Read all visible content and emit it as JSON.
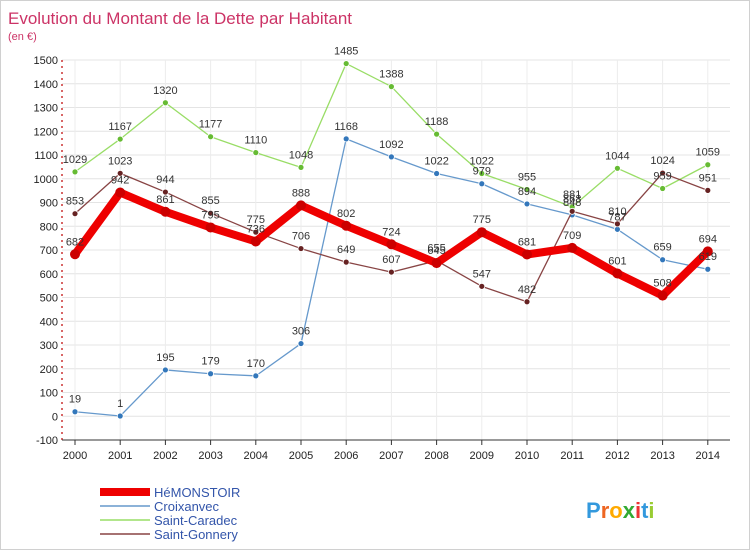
{
  "chart_data": {
    "type": "line",
    "title": "Evolution du Montant de la Dette par Habitant",
    "subtitle": "(en €)",
    "xlabel": "",
    "ylabel": "",
    "ylim": [
      -100,
      1500
    ],
    "y_ticks": [
      -100,
      0,
      100,
      200,
      300,
      400,
      500,
      600,
      700,
      800,
      900,
      1000,
      1100,
      1200,
      1300,
      1400,
      1500
    ],
    "x": [
      "2000",
      "2001",
      "2002",
      "2003",
      "2004",
      "2005",
      "2006",
      "2007",
      "2008",
      "2009",
      "2010",
      "2011",
      "2012",
      "2013",
      "2014"
    ],
    "grid": true,
    "legend_position": "bottom-left",
    "series": [
      {
        "name": "HéMONSTOIR",
        "color": "#ee0000",
        "width": 8,
        "marker": "#cc0000",
        "values": [
          682,
          942,
          861,
          795,
          736,
          888,
          802,
          724,
          645,
          775,
          681,
          709,
          601,
          508,
          694
        ],
        "labels": [
          "682",
          "942",
          "861",
          "795",
          "736",
          "888",
          "802",
          "724",
          "645",
          "775",
          "681",
          "709",
          "601",
          "508",
          "694"
        ]
      },
      {
        "name": "Croixanvec",
        "color": "#6699cc",
        "width": 1.3,
        "marker": "#3377bb",
        "values": [
          19,
          1,
          195,
          179,
          170,
          306,
          1168,
          1092,
          1022,
          979,
          894,
          848,
          787,
          659,
          619
        ],
        "labels": [
          "19",
          "1",
          "195",
          "179",
          "170",
          "306",
          "1168",
          "1092",
          "1022",
          "979",
          "894",
          "848",
          "787",
          "659",
          "619"
        ]
      },
      {
        "name": "Saint-Caradec",
        "color": "#99dd66",
        "width": 1.3,
        "marker": "#66bb33",
        "values": [
          1029,
          1167,
          1320,
          1177,
          1110,
          1048,
          1485,
          1388,
          1188,
          1022,
          955,
          881,
          1044,
          959,
          1059
        ],
        "labels": [
          "1029",
          "1167",
          "1320",
          "1177",
          "1110",
          "1048",
          "1485",
          "1388",
          "1188",
          "1022",
          "955",
          "881",
          "1044",
          "959",
          "1059"
        ]
      },
      {
        "name": "Saint-Gonnery",
        "color": "#884444",
        "width": 1.3,
        "marker": "#662222",
        "values": [
          853,
          1023,
          944,
          855,
          775,
          706,
          649,
          607,
          655,
          547,
          482,
          863,
          810,
          1024,
          951
        ],
        "labels": [
          "853",
          "1023",
          "944",
          "855",
          "775",
          "706",
          "649",
          "607",
          "655",
          "547",
          "482",
          "863",
          "810",
          "1024",
          "951"
        ]
      }
    ]
  },
  "logo": {
    "text": "Proxiti",
    "letters": [
      "P",
      "r",
      "o",
      "x",
      "i",
      "t",
      "i"
    ],
    "colors": [
      "#3399dd",
      "#ee6622",
      "#ffaa00",
      "#33aa33",
      "#ee3333",
      "#3399dd",
      "#99cc33"
    ]
  }
}
